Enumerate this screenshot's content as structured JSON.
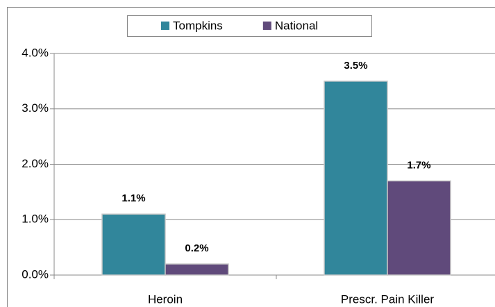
{
  "chart_data": {
    "type": "bar",
    "categories": [
      "Heroin",
      "Prescr. Pain Killer"
    ],
    "series": [
      {
        "name": "Tompkins",
        "color": "#31869b",
        "values": [
          1.1,
          3.5
        ],
        "value_labels": [
          "1.1%",
          "3.5%"
        ]
      },
      {
        "name": "National",
        "color": "#604a7b",
        "values": [
          0.2,
          1.7
        ],
        "value_labels": [
          "0.2%",
          "1.7%"
        ]
      }
    ],
    "ylim": [
      0,
      4
    ],
    "yticks": [
      {
        "value": 0,
        "label": "0.0%"
      },
      {
        "value": 1,
        "label": "1.0%"
      },
      {
        "value": 2,
        "label": "2.0%"
      },
      {
        "value": 3,
        "label": "3.0%"
      },
      {
        "value": 4,
        "label": "4.0%"
      }
    ],
    "grid": true,
    "legend": "top"
  }
}
